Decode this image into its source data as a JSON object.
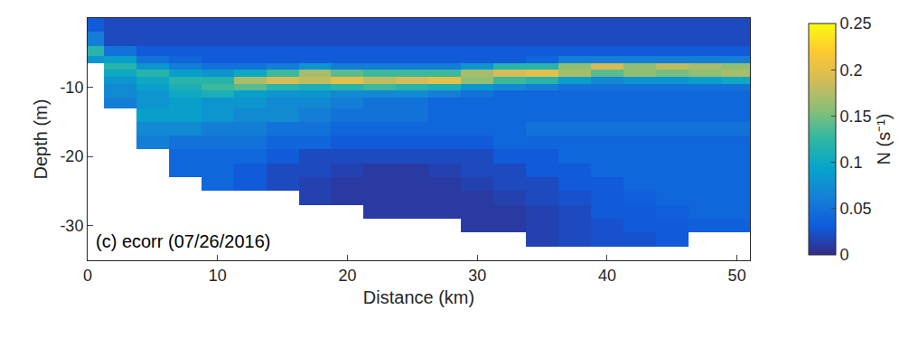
{
  "chart_data": {
    "type": "heatmap",
    "x_label": "Distance (km)",
    "y_label": "Depth (m)",
    "annotations": [
      {
        "text": "(c) ecorr (07/26/2016)"
      }
    ],
    "xlim": [
      0,
      51
    ],
    "xticks": [
      0,
      10,
      20,
      30,
      40,
      50
    ],
    "ylim": [
      -35,
      0
    ],
    "yticks": [
      -30,
      -20,
      -10
    ],
    "colorbar_label": "N (s⁻¹)",
    "zlim": [
      0,
      0.25
    ],
    "zticks": [
      0,
      0.05,
      0.1,
      0.15,
      0.2,
      0.25
    ],
    "x": [
      0,
      2.5,
      5,
      7.5,
      10,
      12.5,
      15,
      17.5,
      20,
      22.5,
      25,
      27.5,
      30,
      32.5,
      35,
      37.5,
      40,
      42.5,
      45,
      47.5,
      50
    ],
    "y": [
      -1,
      -3,
      -5,
      -6,
      -7,
      -8,
      -9,
      -10,
      -11,
      -12,
      -14,
      -16,
      -18,
      -20,
      -22,
      -24,
      -26,
      -28,
      -30,
      -32
    ],
    "z": [
      [
        0.03,
        0.02,
        0.02,
        0.02,
        0.02,
        0.02,
        0.02,
        0.02,
        0.02,
        0.02,
        0.02,
        0.02,
        0.02,
        0.02,
        0.02,
        0.02,
        0.02,
        0.02,
        0.02,
        0.02,
        0.02
      ],
      [
        0.06,
        0.02,
        0.02,
        0.02,
        0.02,
        0.02,
        0.02,
        0.02,
        0.02,
        0.02,
        0.02,
        0.02,
        0.02,
        0.02,
        0.02,
        0.02,
        0.02,
        0.02,
        0.02,
        0.02,
        0.02
      ],
      [
        0.12,
        0.05,
        0.03,
        0.03,
        0.03,
        0.03,
        0.03,
        0.03,
        0.03,
        0.03,
        0.03,
        0.03,
        0.03,
        0.03,
        0.03,
        0.03,
        0.03,
        0.03,
        0.03,
        0.03,
        0.03
      ],
      [
        0.08,
        0.09,
        0.05,
        0.04,
        0.03,
        0.03,
        0.03,
        0.03,
        0.03,
        0.03,
        0.03,
        0.03,
        0.03,
        0.03,
        0.04,
        0.06,
        0.06,
        0.06,
        0.06,
        0.06,
        0.06
      ],
      [
        null,
        0.12,
        0.08,
        0.06,
        0.05,
        0.05,
        0.06,
        0.08,
        0.06,
        0.06,
        0.06,
        0.06,
        0.08,
        0.12,
        0.12,
        0.16,
        0.19,
        0.16,
        0.18,
        0.17,
        0.16
      ],
      [
        null,
        0.1,
        0.12,
        0.09,
        0.08,
        0.1,
        0.13,
        0.17,
        0.14,
        0.13,
        0.13,
        0.13,
        0.17,
        0.19,
        0.2,
        0.17,
        0.14,
        0.16,
        0.15,
        0.16,
        0.17
      ],
      [
        null,
        0.08,
        0.1,
        0.12,
        0.12,
        0.17,
        0.19,
        0.18,
        0.2,
        0.18,
        0.19,
        0.2,
        0.16,
        0.13,
        0.12,
        0.09,
        0.07,
        0.08,
        0.08,
        0.09,
        0.1
      ],
      [
        null,
        0.07,
        0.09,
        0.11,
        0.13,
        0.14,
        0.12,
        0.11,
        0.12,
        0.13,
        0.12,
        0.11,
        0.08,
        0.07,
        0.06,
        0.05,
        0.05,
        0.05,
        0.05,
        0.05,
        0.05
      ],
      [
        null,
        0.07,
        0.08,
        0.1,
        0.11,
        0.09,
        0.08,
        0.08,
        0.07,
        0.07,
        0.07,
        0.06,
        0.05,
        0.04,
        0.04,
        0.04,
        0.04,
        0.04,
        0.04,
        0.04,
        0.04
      ],
      [
        null,
        0.06,
        0.08,
        0.09,
        0.08,
        0.08,
        0.07,
        0.07,
        0.06,
        0.05,
        0.05,
        0.04,
        0.04,
        0.04,
        0.04,
        0.04,
        0.04,
        0.04,
        0.04,
        0.04,
        0.04
      ],
      [
        null,
        null,
        0.09,
        0.09,
        0.08,
        0.07,
        0.07,
        0.06,
        0.05,
        0.05,
        0.05,
        0.04,
        0.04,
        0.04,
        0.04,
        0.04,
        0.04,
        0.04,
        0.04,
        0.04,
        0.04
      ],
      [
        null,
        null,
        0.07,
        0.07,
        0.06,
        0.06,
        0.05,
        0.05,
        0.04,
        0.04,
        0.04,
        0.04,
        0.04,
        0.04,
        0.05,
        0.05,
        0.05,
        0.05,
        0.05,
        0.05,
        0.05
      ],
      [
        null,
        null,
        0.06,
        0.05,
        0.05,
        0.05,
        0.04,
        0.04,
        0.03,
        0.03,
        0.03,
        0.03,
        0.03,
        0.04,
        0.04,
        0.04,
        0.04,
        0.04,
        0.04,
        0.04,
        0.04
      ],
      [
        null,
        null,
        null,
        0.04,
        0.04,
        0.04,
        0.03,
        0.02,
        0.02,
        0.02,
        0.02,
        0.02,
        0.02,
        0.03,
        0.03,
        0.04,
        0.04,
        0.04,
        0.04,
        0.04,
        0.04
      ],
      [
        null,
        null,
        null,
        0.04,
        0.04,
        0.03,
        0.02,
        0.02,
        0.015,
        0.01,
        0.01,
        0.015,
        0.02,
        0.02,
        0.03,
        0.03,
        0.04,
        0.04,
        0.04,
        0.04,
        0.04
      ],
      [
        null,
        null,
        null,
        null,
        0.04,
        0.03,
        0.02,
        0.015,
        0.01,
        0.01,
        0.01,
        0.01,
        0.015,
        0.02,
        0.02,
        0.03,
        0.03,
        0.04,
        0.04,
        0.04,
        0.04
      ],
      [
        null,
        null,
        null,
        null,
        null,
        null,
        null,
        0.015,
        0.01,
        0.01,
        0.01,
        0.01,
        0.01,
        0.015,
        0.02,
        0.025,
        0.03,
        0.035,
        0.04,
        0.04,
        0.04
      ],
      [
        null,
        null,
        null,
        null,
        null,
        null,
        null,
        null,
        null,
        0.01,
        0.01,
        0.01,
        0.01,
        0.01,
        0.015,
        0.02,
        0.03,
        0.03,
        0.035,
        0.04,
        0.04
      ],
      [
        null,
        null,
        null,
        null,
        null,
        null,
        null,
        null,
        null,
        null,
        null,
        null,
        0.01,
        0.01,
        0.015,
        0.02,
        0.025,
        0.03,
        0.03,
        0.035,
        0.035
      ],
      [
        null,
        null,
        null,
        null,
        null,
        null,
        null,
        null,
        null,
        null,
        null,
        null,
        null,
        null,
        0.015,
        0.02,
        0.025,
        0.025,
        0.03,
        null,
        null
      ]
    ]
  }
}
